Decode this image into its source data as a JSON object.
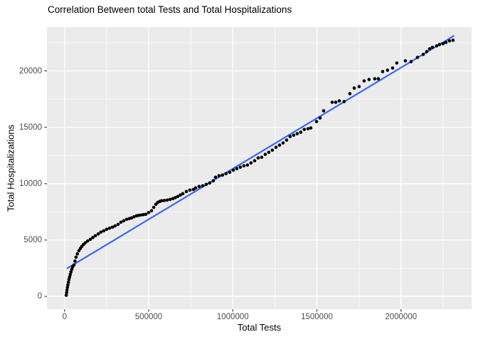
{
  "chart_data": {
    "type": "scatter",
    "title": "Correlation Between total Tests and Total Hospitalizations",
    "xlabel": "Total Tests",
    "ylabel": "Total Hospitalizations",
    "legend": "none",
    "grid": "major+minor",
    "panel_bg": "#EBEBEB",
    "grid_color": "#FFFFFF",
    "tick_color": "#333333",
    "tick_label_color": "#4D4D4D",
    "point_color": "#000000",
    "x_ticks": [
      0,
      500000,
      1000000,
      1500000,
      2000000
    ],
    "x_minor_ticks": [
      250000,
      750000,
      1250000,
      1750000,
      2250000
    ],
    "y_ticks": [
      0,
      5000,
      10000,
      15000,
      20000
    ],
    "y_minor_ticks": [
      2500,
      7500,
      12500,
      17500,
      22500
    ],
    "x_domain": [
      -104750,
      2419750
    ],
    "y_domain": [
      -1137,
      23887
    ],
    "smooth_line": {
      "model": "lm",
      "color": "#3366FF",
      "x": [
        17000,
        2313000
      ],
      "y": [
        2500,
        23100
      ]
    },
    "points": [
      [
        10000,
        100
      ],
      [
        12000,
        330
      ],
      [
        14000,
        560
      ],
      [
        17000,
        800
      ],
      [
        20000,
        1030
      ],
      [
        23000,
        1260
      ],
      [
        26000,
        1490
      ],
      [
        30000,
        1720
      ],
      [
        34000,
        1950
      ],
      [
        38000,
        2180
      ],
      [
        43000,
        2400
      ],
      [
        48000,
        2620
      ],
      [
        56000,
        2790
      ],
      [
        62000,
        3140
      ],
      [
        68000,
        3480
      ],
      [
        76000,
        3770
      ],
      [
        85000,
        4050
      ],
      [
        94000,
        4250
      ],
      [
        102000,
        4430
      ],
      [
        112000,
        4600
      ],
      [
        123000,
        4750
      ],
      [
        137000,
        4910
      ],
      [
        153000,
        5060
      ],
      [
        168000,
        5220
      ],
      [
        183000,
        5380
      ],
      [
        200000,
        5540
      ],
      [
        216000,
        5700
      ],
      [
        233000,
        5820
      ],
      [
        250000,
        5950
      ],
      [
        267000,
        6050
      ],
      [
        284000,
        6140
      ],
      [
        300000,
        6250
      ],
      [
        318000,
        6390
      ],
      [
        335000,
        6580
      ],
      [
        352000,
        6710
      ],
      [
        369000,
        6840
      ],
      [
        385000,
        6900
      ],
      [
        398000,
        6960
      ],
      [
        413000,
        7060
      ],
      [
        428000,
        7150
      ],
      [
        440000,
        7180
      ],
      [
        453000,
        7220
      ],
      [
        468000,
        7250
      ],
      [
        483000,
        7280
      ],
      [
        500000,
        7440
      ],
      [
        517000,
        7600
      ],
      [
        530000,
        7900
      ],
      [
        543000,
        8170
      ],
      [
        555000,
        8350
      ],
      [
        566000,
        8420
      ],
      [
        576000,
        8480
      ],
      [
        593000,
        8510
      ],
      [
        610000,
        8540
      ],
      [
        627000,
        8600
      ],
      [
        644000,
        8670
      ],
      [
        658000,
        8760
      ],
      [
        673000,
        8860
      ],
      [
        688000,
        8990
      ],
      [
        703000,
        9110
      ],
      [
        724000,
        9300
      ],
      [
        745000,
        9430
      ],
      [
        766000,
        9490
      ],
      [
        779000,
        9620
      ],
      [
        800000,
        9750
      ],
      [
        821000,
        9810
      ],
      [
        842000,
        9940
      ],
      [
        863000,
        10060
      ],
      [
        884000,
        10250
      ],
      [
        897000,
        10570
      ],
      [
        918000,
        10700
      ],
      [
        939000,
        10760
      ],
      [
        960000,
        10890
      ],
      [
        982000,
        11010
      ],
      [
        1003000,
        11200
      ],
      [
        1024000,
        11330
      ],
      [
        1045000,
        11460
      ],
      [
        1066000,
        11580
      ],
      [
        1087000,
        11650
      ],
      [
        1108000,
        11840
      ],
      [
        1130000,
        12030
      ],
      [
        1151000,
        12280
      ],
      [
        1172000,
        12340
      ],
      [
        1193000,
        12600
      ],
      [
        1214000,
        12780
      ],
      [
        1235000,
        12970
      ],
      [
        1257000,
        13230
      ],
      [
        1278000,
        13420
      ],
      [
        1299000,
        13610
      ],
      [
        1320000,
        13860
      ],
      [
        1341000,
        14180
      ],
      [
        1362000,
        14300
      ],
      [
        1383000,
        14430
      ],
      [
        1404000,
        14560
      ],
      [
        1425000,
        14810
      ],
      [
        1447000,
        14870
      ],
      [
        1464000,
        14940
      ],
      [
        1498000,
        15510
      ],
      [
        1519000,
        15820
      ],
      [
        1540000,
        16460
      ],
      [
        1591000,
        17220
      ],
      [
        1612000,
        17220
      ],
      [
        1633000,
        17340
      ],
      [
        1662000,
        17280
      ],
      [
        1696000,
        17980
      ],
      [
        1722000,
        18480
      ],
      [
        1751000,
        18610
      ],
      [
        1781000,
        19110
      ],
      [
        1810000,
        19240
      ],
      [
        1844000,
        19300
      ],
      [
        1865000,
        19300
      ],
      [
        1891000,
        19940
      ],
      [
        1920000,
        20060
      ],
      [
        1950000,
        20250
      ],
      [
        1975000,
        20700
      ],
      [
        2026000,
        20890
      ],
      [
        2060000,
        20820
      ],
      [
        2098000,
        21200
      ],
      [
        2132000,
        21460
      ],
      [
        2153000,
        21710
      ],
      [
        2170000,
        21960
      ],
      [
        2187000,
        22090
      ],
      [
        2212000,
        22220
      ],
      [
        2229000,
        22340
      ],
      [
        2250000,
        22410
      ],
      [
        2267000,
        22530
      ],
      [
        2288000,
        22660
      ],
      [
        2309000,
        22720
      ]
    ]
  }
}
